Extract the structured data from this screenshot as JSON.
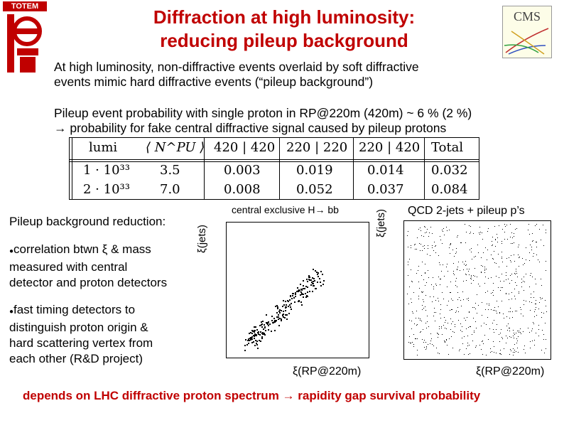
{
  "header": {
    "title_line1": "Diffraction at high luminosity:",
    "title_line2": "reducing pileup background",
    "left_logo_text": "TOTEM",
    "right_logo_text": "CMS"
  },
  "intro": {
    "line1": "At high luminosity, non-diffractive events overlaid by soft diffractive",
    "line2": "events mimic hard diffractive events (“pileup background”)"
  },
  "pileup": {
    "line1": "Pileup event probability with single proton in RP@220m (420m) ~ 6 % (2 %)",
    "line2": "→ probability for fake central diffractive signal caused by pileup protons"
  },
  "table": {
    "headers": [
      "lumi",
      "⟨ N^PU ⟩",
      "420 | 420",
      "220 | 220",
      "220 | 420",
      "Total"
    ],
    "rows": [
      [
        "1 · 10³³",
        "3.5",
        "0.003",
        "0.019",
        "0.014",
        "0.032"
      ],
      [
        "2 · 10³³",
        "7.0",
        "0.008",
        "0.052",
        "0.037",
        "0.084"
      ]
    ]
  },
  "left_text": {
    "heading": "Pileup background reduction:",
    "bullet1_l1": "correlation btwn ξ & mass",
    "bullet1_l2": "measured with central",
    "bullet1_l3": "detector and proton detectors",
    "bullet2_l1": "fast timing detectors to",
    "bullet2_l2": "distinguish proton origin &",
    "bullet2_l3": "hard scattering vertex from",
    "bullet2_l4": "each other (R&D project)"
  },
  "plots": [
    {
      "title": "central exclusive H→ bb",
      "ylabel": "ξ(jets)",
      "xlabel": "ξ(RP@220m)"
    },
    {
      "title": "QCD 2-jets + pileup p’s",
      "ylabel": "ξ(jets)",
      "xlabel": "ξ(RP@220m)"
    }
  ],
  "footer": {
    "text": "depends on LHC diffractive proton spectrum → rapidity gap survival probability"
  },
  "colors": {
    "title": "#c00000",
    "footer": "#c00000"
  }
}
